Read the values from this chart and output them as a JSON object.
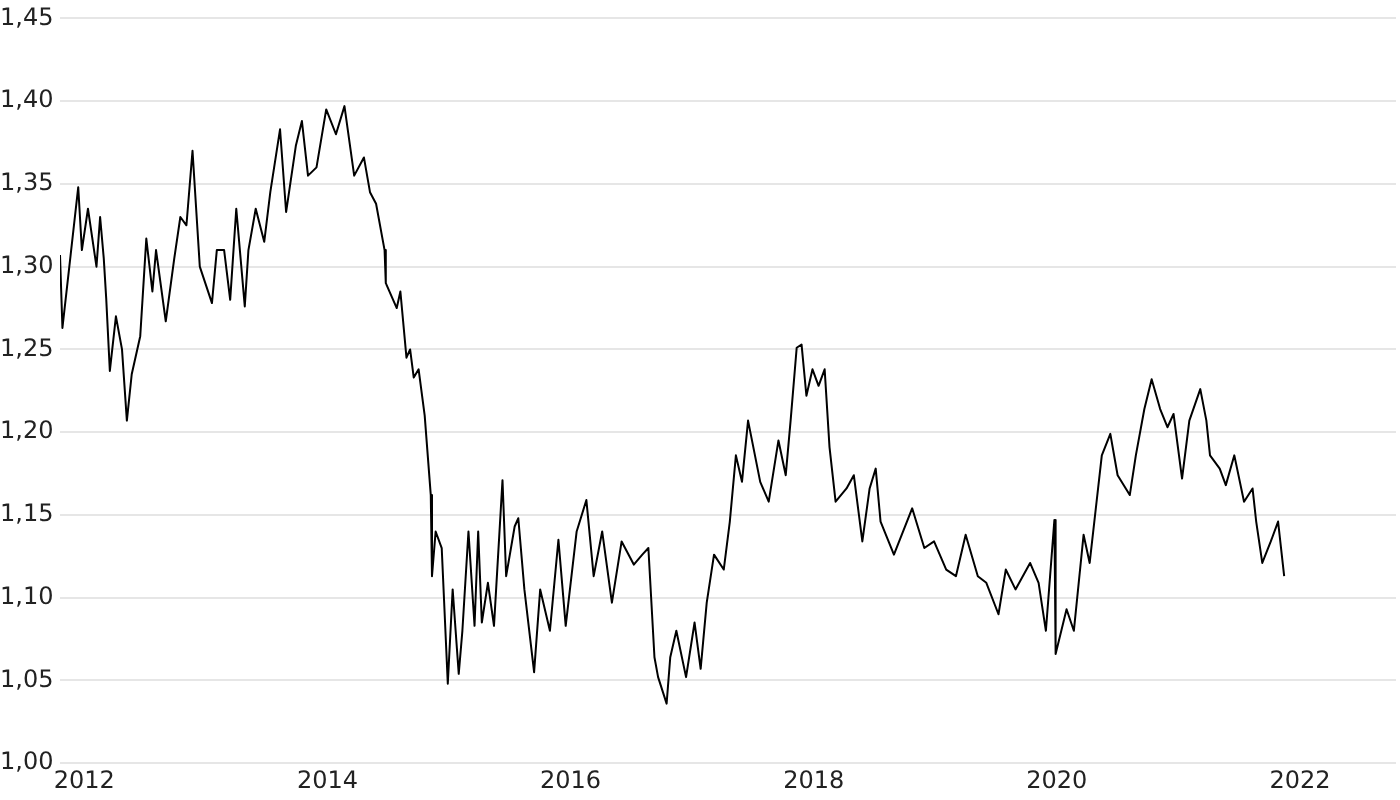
{
  "chart_data": {
    "type": "line",
    "xlim": [
      2011.8,
      2022.79
    ],
    "xticks": [
      2012,
      2014,
      2016,
      2018,
      2020,
      2022
    ],
    "ylim": [
      1.0,
      1.45
    ],
    "yticks": [
      {
        "value": 1.0,
        "label": "1,00"
      },
      {
        "value": 1.05,
        "label": "1,05"
      },
      {
        "value": 1.1,
        "label": "1,10"
      },
      {
        "value": 1.15,
        "label": "1,15"
      },
      {
        "value": 1.2,
        "label": "1,20"
      },
      {
        "value": 1.25,
        "label": "1,25"
      },
      {
        "value": 1.3,
        "label": "1,30"
      },
      {
        "value": 1.35,
        "label": "1,35"
      },
      {
        "value": 1.4,
        "label": "1,40"
      },
      {
        "value": 1.45,
        "label": "1,45"
      }
    ],
    "grid": "y",
    "legend": false,
    "marker": "none",
    "line_style": "solid",
    "x": [
      2011.8,
      2011.82,
      2011.95,
      2011.98,
      2012.03,
      2012.1,
      2012.13,
      2012.16,
      2012.18,
      2012.21,
      2012.26,
      2012.31,
      2012.35,
      2012.39,
      2012.46,
      2012.51,
      2012.56,
      2012.59,
      2012.67,
      2012.74,
      2012.79,
      2012.84,
      2012.89,
      2012.95,
      2013.05,
      2013.09,
      2013.15,
      2013.2,
      2013.25,
      2013.32,
      2013.35,
      2013.41,
      2013.48,
      2013.53,
      2013.61,
      2013.66,
      2013.74,
      2013.79,
      2013.84,
      2013.91,
      2013.99,
      2014.07,
      2014.14,
      2014.22,
      2014.3,
      2014.35,
      2014.4,
      2014.47,
      2014.48,
      2014.57,
      2014.6,
      2014.65,
      2014.68,
      2014.71,
      2014.75,
      2014.8,
      2014.85,
      2014.86,
      2014.89,
      2014.94,
      2014.99,
      2015.03,
      2015.08,
      2015.11,
      2015.16,
      2015.21,
      2015.24,
      2015.27,
      2015.32,
      2015.37,
      2015.44,
      2015.47,
      2015.54,
      2015.57,
      2015.62,
      2015.7,
      2015.75,
      2015.83,
      2015.9,
      2015.96,
      2016.05,
      2016.13,
      2016.19,
      2016.26,
      2016.34,
      2016.42,
      2016.52,
      2016.59,
      2016.64,
      2016.69,
      2016.72,
      2016.79,
      2016.82,
      2016.87,
      2016.95,
      2017.02,
      2017.07,
      2017.12,
      2017.18,
      2017.26,
      2017.31,
      2017.36,
      2017.41,
      2017.46,
      2017.56,
      2017.63,
      2017.71,
      2017.77,
      2017.81,
      2017.86,
      2017.9,
      2017.94,
      2017.99,
      2018.04,
      2018.09,
      2018.13,
      2018.18,
      2018.27,
      2018.33,
      2018.4,
      2018.46,
      2018.51,
      2018.55,
      2018.66,
      2018.81,
      2018.91,
      2018.99,
      2019.09,
      2019.17,
      2019.25,
      2019.35,
      2019.42,
      2019.52,
      2019.58,
      2019.66,
      2019.78,
      2019.85,
      2019.91,
      2019.98,
      2019.99,
      2020.08,
      2020.14,
      2020.22,
      2020.27,
      2020.37,
      2020.44,
      2020.5,
      2020.6,
      2020.65,
      2020.72,
      2020.78,
      2020.85,
      2020.91,
      2020.96,
      2021.03,
      2021.09,
      2021.18,
      2021.23,
      2021.26,
      2021.34,
      2021.39,
      2021.46,
      2021.54,
      2021.61,
      2021.64,
      2021.69,
      2021.76,
      2021.82,
      2021.87
    ],
    "series": [
      {
        "color": "#000000",
        "values": [
          1.307,
          1.263,
          1.348,
          1.31,
          1.335,
          1.3,
          1.33,
          1.305,
          1.281,
          1.237,
          1.27,
          1.25,
          1.207,
          1.235,
          1.258,
          1.317,
          1.285,
          1.31,
          1.267,
          1.305,
          1.33,
          1.325,
          1.37,
          1.3,
          1.278,
          1.31,
          1.31,
          1.28,
          1.335,
          1.276,
          1.31,
          1.335,
          1.315,
          1.345,
          1.383,
          1.333,
          1.373,
          1.388,
          1.355,
          1.36,
          1.395,
          1.38,
          1.397,
          1.355,
          1.366,
          1.345,
          1.338,
          1.31,
          1.29,
          1.275,
          1.285,
          1.245,
          1.25,
          1.233,
          1.238,
          1.21,
          1.162,
          1.113,
          1.14,
          1.13,
          1.048,
          1.105,
          1.054,
          1.08,
          1.14,
          1.083,
          1.14,
          1.085,
          1.109,
          1.083,
          1.171,
          1.113,
          1.143,
          1.148,
          1.105,
          1.055,
          1.105,
          1.08,
          1.135,
          1.083,
          1.14,
          1.159,
          1.113,
          1.14,
          1.097,
          1.134,
          1.12,
          1.126,
          1.13,
          1.064,
          1.052,
          1.036,
          1.064,
          1.08,
          1.052,
          1.085,
          1.057,
          1.097,
          1.126,
          1.117,
          1.146,
          1.186,
          1.17,
          1.207,
          1.17,
          1.158,
          1.195,
          1.174,
          1.207,
          1.251,
          1.253,
          1.222,
          1.238,
          1.228,
          1.238,
          1.191,
          1.158,
          1.166,
          1.174,
          1.134,
          1.166,
          1.178,
          1.146,
          1.126,
          1.154,
          1.13,
          1.134,
          1.117,
          1.113,
          1.138,
          1.113,
          1.109,
          1.09,
          1.117,
          1.105,
          1.121,
          1.109,
          1.08,
          1.147,
          1.066,
          1.093,
          1.08,
          1.138,
          1.121,
          1.186,
          1.199,
          1.174,
          1.162,
          1.186,
          1.214,
          1.232,
          1.214,
          1.203,
          1.211,
          1.172,
          1.207,
          1.226,
          1.207,
          1.186,
          1.178,
          1.168,
          1.186,
          1.158,
          1.166,
          1.146,
          1.121,
          1.134,
          1.146,
          1.113
        ]
      }
    ]
  }
}
